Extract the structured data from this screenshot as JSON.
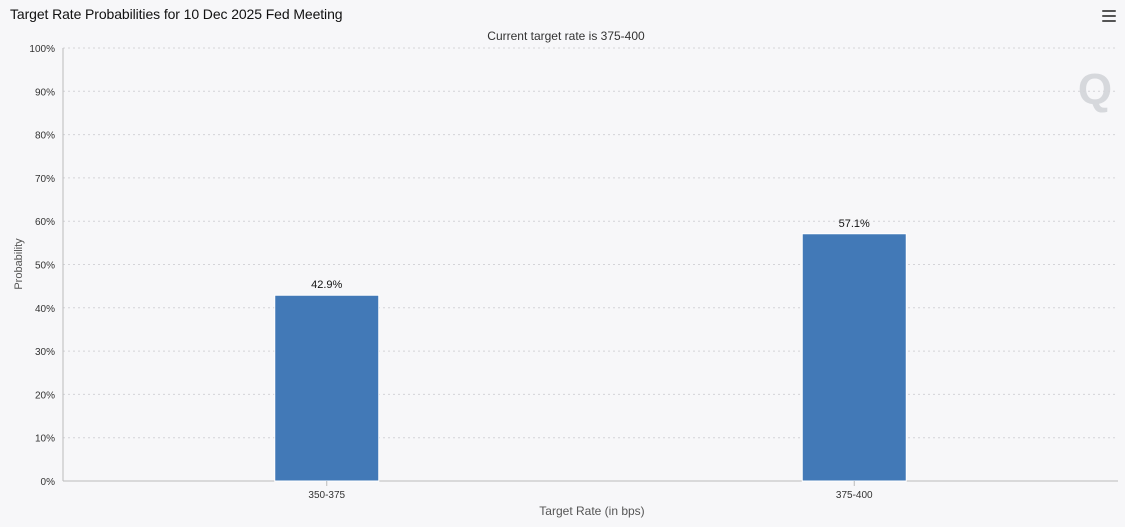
{
  "header": {
    "title": "Target Rate Probabilities for 10 Dec 2025 Fed Meeting",
    "menu_icon": "hamburger-menu-icon"
  },
  "watermark": {
    "icon": "q-logo-icon",
    "text": "Q"
  },
  "chart_data": {
    "type": "bar",
    "subtitle": "Current target rate is 375-400",
    "categories": [
      "350-375",
      "375-400"
    ],
    "values": [
      42.9,
      57.1
    ],
    "data_labels": [
      "42.9%",
      "57.1%"
    ],
    "xlabel": "Target Rate (in bps)",
    "ylabel": "Probability",
    "ylim": [
      0,
      100
    ],
    "yticks": [
      "0%",
      "10%",
      "20%",
      "30%",
      "40%",
      "50%",
      "60%",
      "70%",
      "80%",
      "90%",
      "100%"
    ],
    "grid": true,
    "bar_color": "#4279b7"
  }
}
